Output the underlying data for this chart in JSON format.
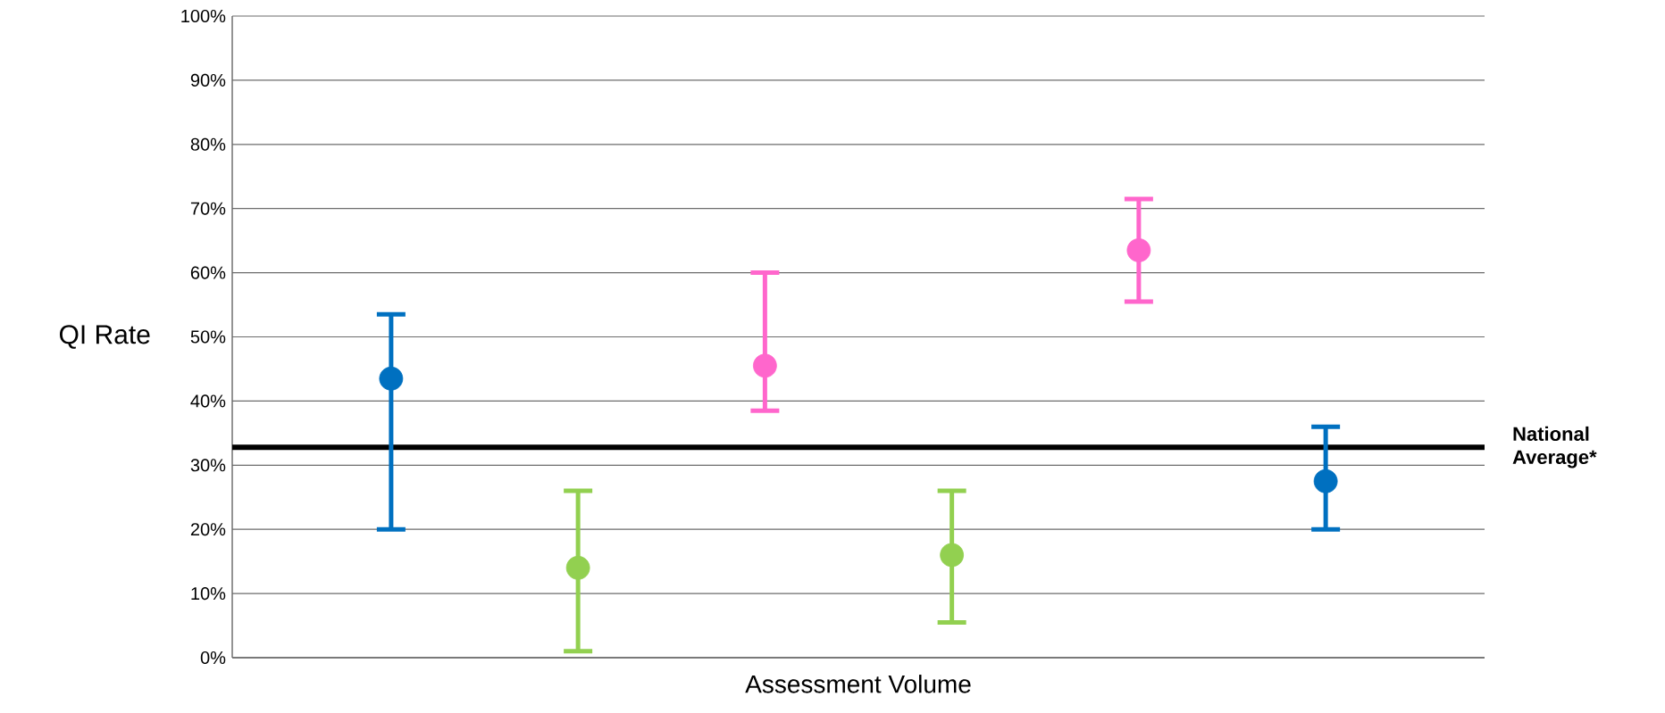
{
  "chart_data": {
    "type": "scatter",
    "xlabel": "Assessment Volume",
    "ylabel": "QI Rate",
    "categories": [
      null,
      null,
      null,
      null,
      null,
      null
    ],
    "values": [
      43.5,
      14,
      45.5,
      16,
      63.5,
      27.5
    ],
    "errors": [
      [
        20,
        53.5
      ],
      [
        1,
        26
      ],
      [
        38.5,
        60
      ],
      [
        5.5,
        26
      ],
      [
        55.5,
        71.5
      ],
      [
        20,
        36
      ]
    ],
    "colors": [
      "#0070c0",
      "#92d050",
      "#ff66cc",
      "#92d050",
      "#ff66cc",
      "#0070c0"
    ],
    "marker": "circle",
    "grid": "y",
    "ylim": [
      0,
      100
    ],
    "yticks": [
      {
        "value": 0,
        "label": "0%"
      },
      {
        "value": 10,
        "label": "10%"
      },
      {
        "value": 20,
        "label": "20%"
      },
      {
        "value": 30,
        "label": "30%"
      },
      {
        "value": 40,
        "label": "40%"
      },
      {
        "value": 50,
        "label": "50%"
      },
      {
        "value": 60,
        "label": "60%"
      },
      {
        "value": 70,
        "label": "70%"
      },
      {
        "value": 80,
        "label": "80%"
      },
      {
        "value": 90,
        "label": "90%"
      },
      {
        "value": 100,
        "label": "100%"
      }
    ],
    "ref_lines": [
      {
        "axis": "y",
        "value": 32.8,
        "label": "National Average*",
        "color": "#000000"
      }
    ]
  }
}
